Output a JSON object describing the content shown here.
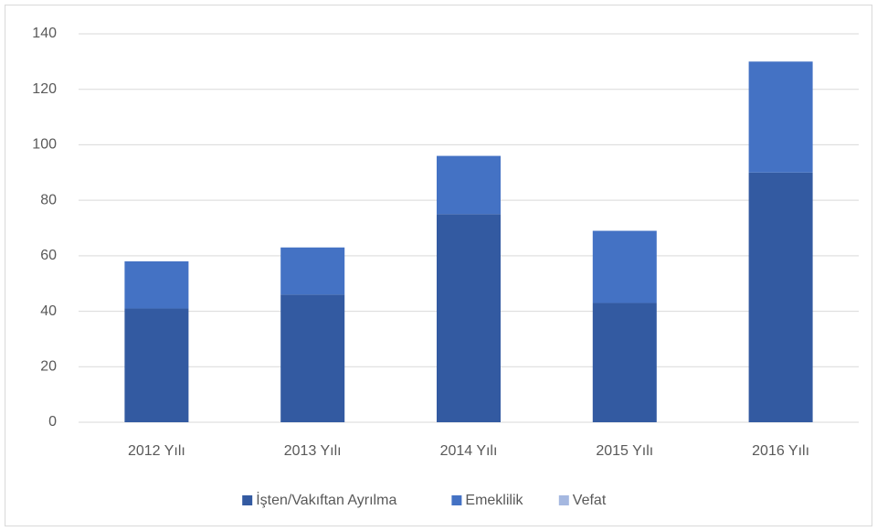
{
  "chart_data": {
    "type": "stacked_bar",
    "categories": [
      "2012 Yılı",
      "2013 Yılı",
      "2014 Yılı",
      "2015 Yılı",
      "2016 Yılı"
    ],
    "series": [
      {
        "name": "İşten/Vakıftan Ayrılma",
        "color": "#335aa1",
        "values": [
          41,
          46,
          75,
          43,
          90
        ]
      },
      {
        "name": "Emeklilik",
        "color": "#4472c4",
        "values": [
          17,
          17,
          21,
          26,
          40
        ]
      },
      {
        "name": "Vefat",
        "color": "#a5b8e0",
        "values": [
          0,
          0,
          0,
          0,
          0
        ]
      }
    ],
    "ylim": [
      0,
      140
    ],
    "yticks": [
      0,
      20,
      40,
      60,
      80,
      100,
      120,
      140
    ],
    "grid": true,
    "legend": "bottom"
  }
}
